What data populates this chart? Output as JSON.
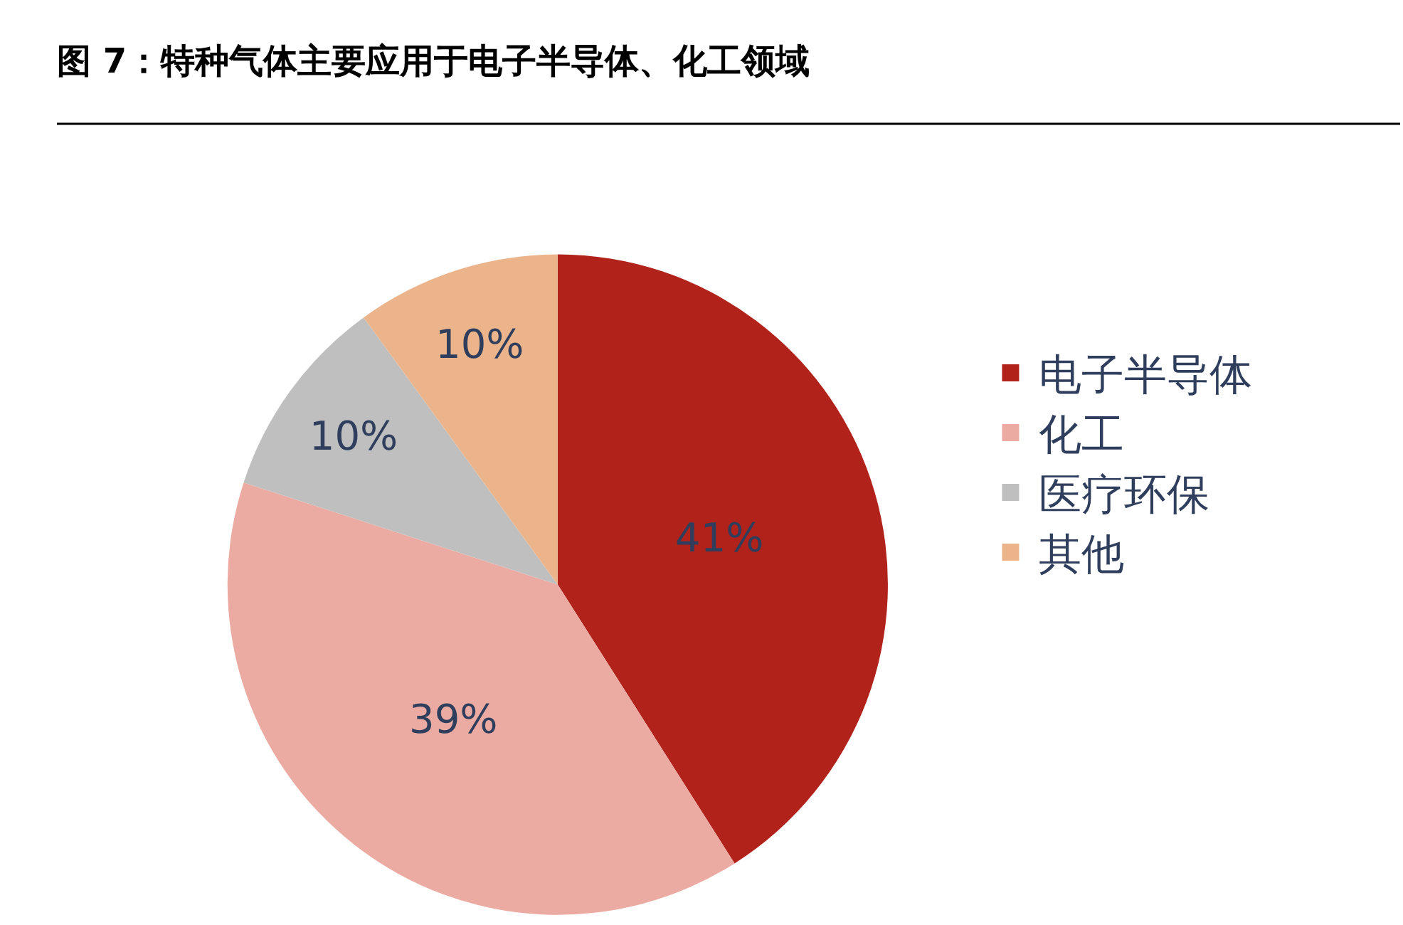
{
  "chart_data": {
    "type": "pie",
    "title": "图 7：特种气体主要应用于电子半导体、化工领域",
    "categories": [
      "电子半导体",
      "化工",
      "医疗环保",
      "其他"
    ],
    "values": [
      41,
      39,
      10,
      10
    ],
    "colors": [
      "#b0221a",
      "#ecaba2",
      "#bfbfbf",
      "#ebb48b"
    ],
    "value_labels": [
      "41%",
      "39%",
      "10%",
      "10%"
    ],
    "legend": "right"
  }
}
